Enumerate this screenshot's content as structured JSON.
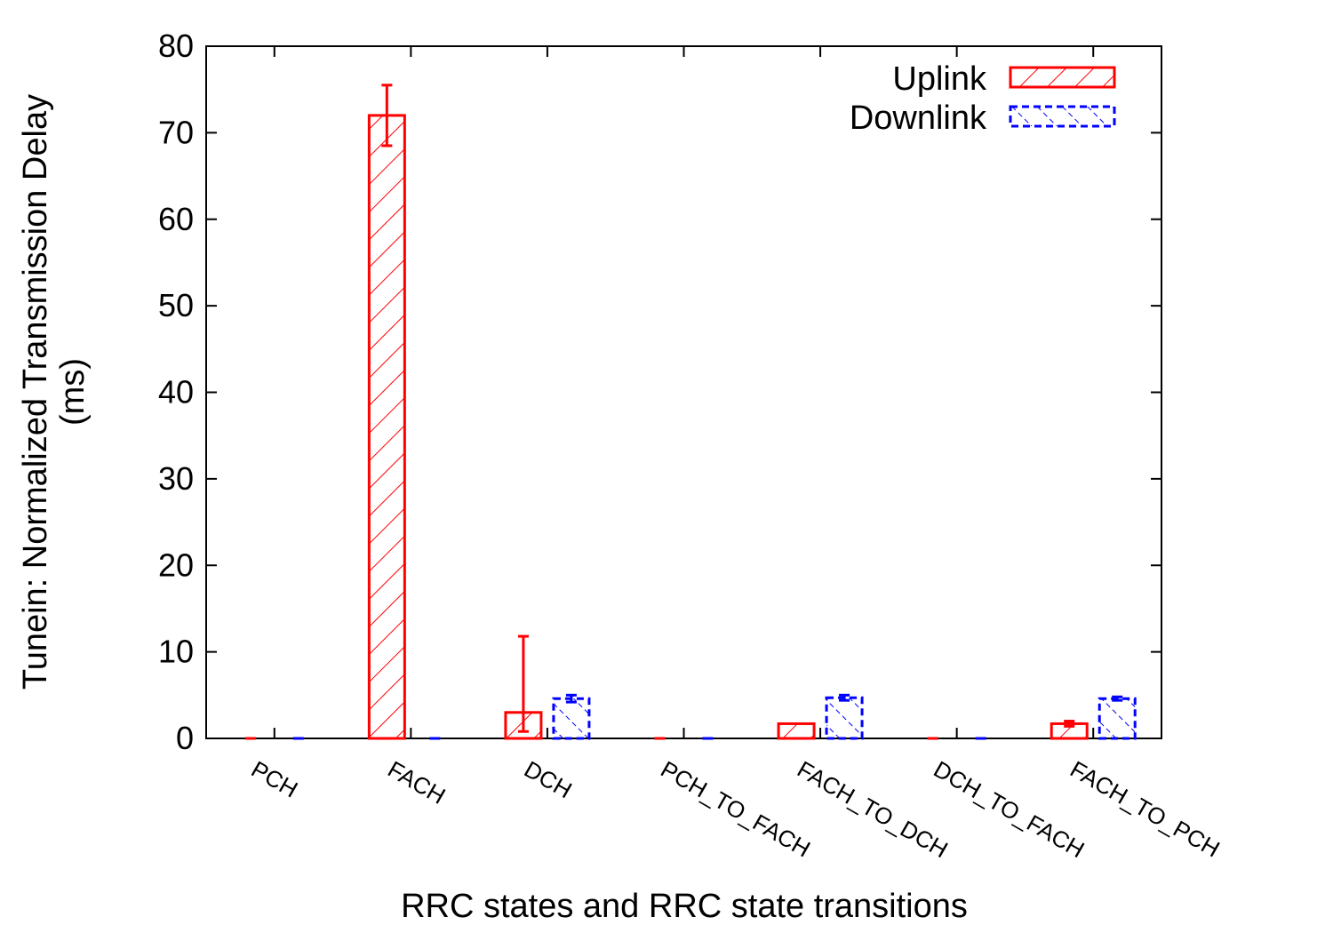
{
  "chart_data": {
    "type": "bar",
    "title": "",
    "xlabel": "RRC states and RRC state transitions",
    "ylabel_line1": "Tunein: Normalized Transmission Delay",
    "ylabel_line2": "(ms)",
    "ylim": [
      0,
      80
    ],
    "yticks": [
      "0",
      "10",
      "20",
      "30",
      "40",
      "50",
      "60",
      "70",
      "80"
    ],
    "grid": false,
    "legend_position": "top-right",
    "categories": [
      "PCH",
      "FACH",
      "DCH",
      "PCH_TO_FACH",
      "FACH_TO_DCH",
      "DCH_TO_FACH",
      "FACH_TO_PCH"
    ],
    "series": [
      {
        "name": "Uplink",
        "color": "#ff0000",
        "pattern": "hatch-backslash",
        "values": [
          0,
          72,
          3,
          0,
          1.7,
          0,
          1.7
        ],
        "error_low": [
          0,
          68.5,
          0.8,
          0,
          1.7,
          0,
          1.4
        ],
        "error_high": [
          0,
          75.5,
          11.8,
          0,
          1.7,
          0,
          2.0
        ]
      },
      {
        "name": "Downlink",
        "color": "#0000ff",
        "pattern": "hatch-slash-dashed",
        "values": [
          0,
          0,
          4.6,
          0,
          4.7,
          0,
          4.6
        ],
        "error_low": [
          0,
          0,
          4.2,
          0,
          4.4,
          0,
          4.4
        ],
        "error_high": [
          0,
          0,
          5.0,
          0,
          5.0,
          0,
          4.8
        ]
      }
    ]
  }
}
